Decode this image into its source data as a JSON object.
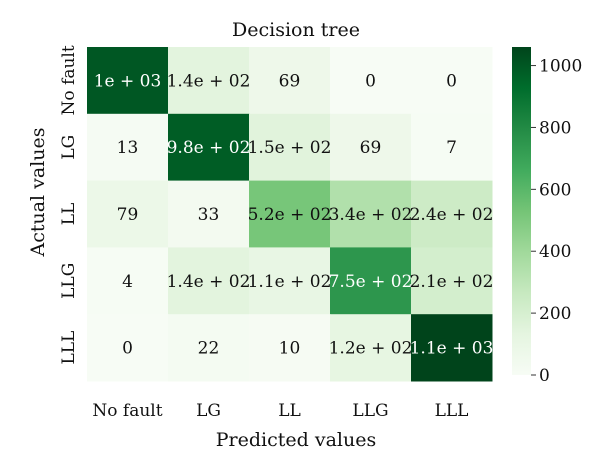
{
  "chart_data": {
    "type": "heatmap",
    "title": "Decision tree",
    "xlabel": "Predicted values",
    "ylabel": "Actual values",
    "x_categories": [
      "No fault",
      "LG",
      "LL",
      "LLG",
      "LLL"
    ],
    "y_categories": [
      "No fault",
      "LG",
      "LL",
      "LLG",
      "LLL"
    ],
    "values": [
      [
        1000,
        140,
        69,
        0,
        0
      ],
      [
        13,
        980,
        150,
        69,
        7
      ],
      [
        79,
        33,
        520,
        340,
        240
      ],
      [
        4,
        140,
        110,
        750,
        210
      ],
      [
        0,
        22,
        10,
        120,
        1100
      ]
    ],
    "labels": [
      [
        "1e + 03",
        "1.4e + 02",
        "69",
        "0",
        "0"
      ],
      [
        "13",
        "9.8e + 02",
        "1.5e + 02",
        "69",
        "7"
      ],
      [
        "79",
        "33",
        "5.2e + 02",
        "3.4e + 02",
        "2.4e + 02"
      ],
      [
        "4",
        "1.4e + 02",
        "1.1e + 02",
        "7.5e + 02",
        "2.1e + 02"
      ],
      [
        "0",
        "22",
        "10",
        "1.2e + 02",
        "1.1e + 03"
      ]
    ],
    "colorbar": {
      "min": 0,
      "max": 1060,
      "ticks": [
        0,
        200,
        400,
        600,
        800,
        1000
      ],
      "colormap": "Greens",
      "color_low": "#f7fcf5",
      "color_high": "#00441b"
    }
  }
}
